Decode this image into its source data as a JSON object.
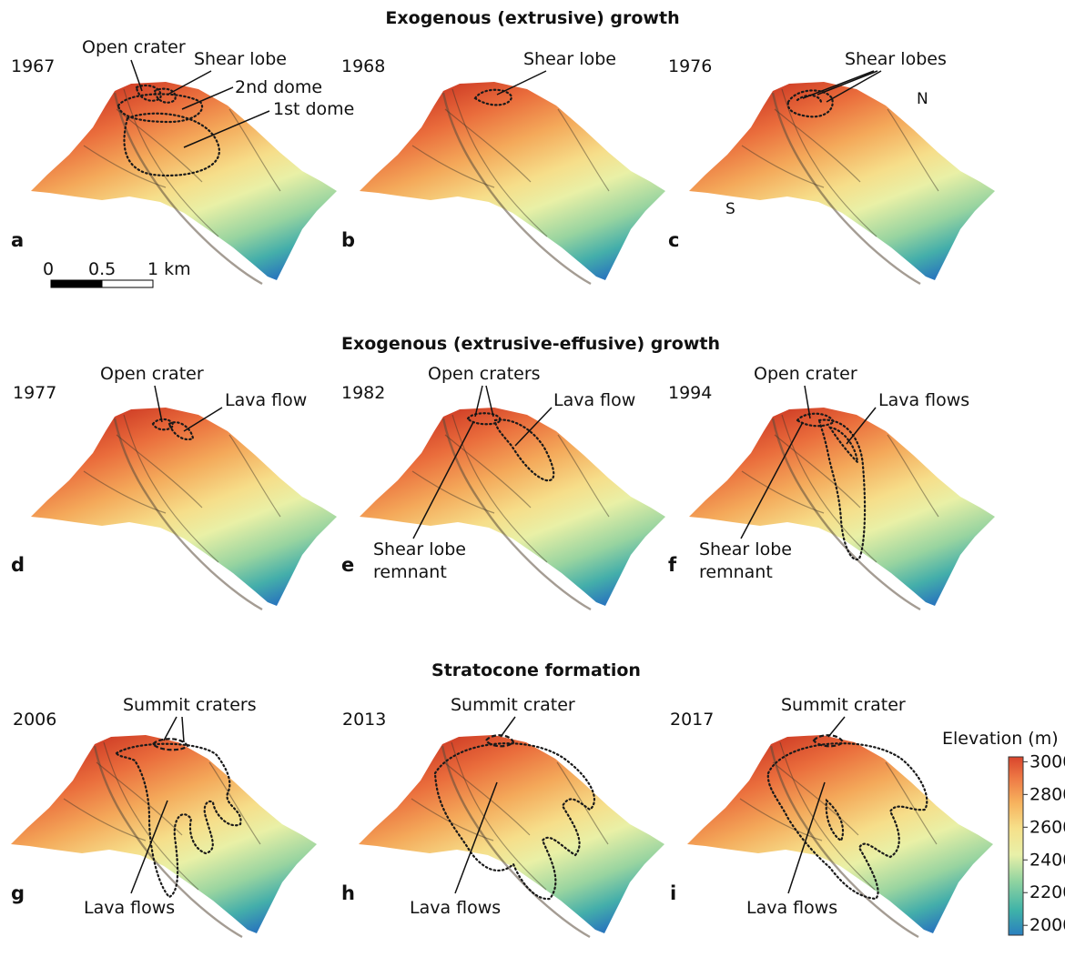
{
  "rows": [
    {
      "title": "Exogenous (extrusive) growth",
      "panels": [
        {
          "year": "1967",
          "letter": "a",
          "labels": [
            "Open crater",
            "Shear lobe",
            "2nd dome",
            "1st dome"
          ]
        },
        {
          "year": "1968",
          "letter": "b",
          "labels": [
            "Shear lobe"
          ]
        },
        {
          "year": "1976",
          "letter": "c",
          "labels": [
            "Shear lobes"
          ],
          "compass": {
            "north": "N",
            "south": "S"
          }
        }
      ]
    },
    {
      "title": "Exogenous (extrusive-effusive) growth",
      "panels": [
        {
          "year": "1977",
          "letter": "d",
          "labels": [
            "Open crater",
            "Lava flow"
          ]
        },
        {
          "year": "1982",
          "letter": "e",
          "labels": [
            "Open craters",
            "Lava flow",
            "Shear lobe",
            "remnant"
          ]
        },
        {
          "year": "1994",
          "letter": "f",
          "labels": [
            "Open crater",
            "Lava flows",
            "Shear lobe",
            "remnant"
          ]
        }
      ]
    },
    {
      "title": "Stratocone formation",
      "panels": [
        {
          "year": "2006",
          "letter": "g",
          "labels": [
            "Summit craters",
            "Lava flows"
          ]
        },
        {
          "year": "2013",
          "letter": "h",
          "labels": [
            "Summit crater",
            "Lava flows"
          ]
        },
        {
          "year": "2017",
          "letter": "i",
          "labels": [
            "Summit crater",
            "Lava flows"
          ]
        }
      ]
    }
  ],
  "scale_bar": {
    "ticks": [
      "0",
      "0.5",
      "1 km"
    ]
  },
  "colorbar": {
    "title": "Elevation (m)",
    "min": 1940,
    "max": 3030,
    "ticks": [
      "3000",
      "2800",
      "2600",
      "2400",
      "2200",
      "2000"
    ],
    "colors": [
      "#2a7fbf",
      "#3fb3a8",
      "#8fd3a0",
      "#e8f0a8",
      "#f6e08a",
      "#f7b35e",
      "#ee7a45",
      "#d9452c"
    ]
  }
}
